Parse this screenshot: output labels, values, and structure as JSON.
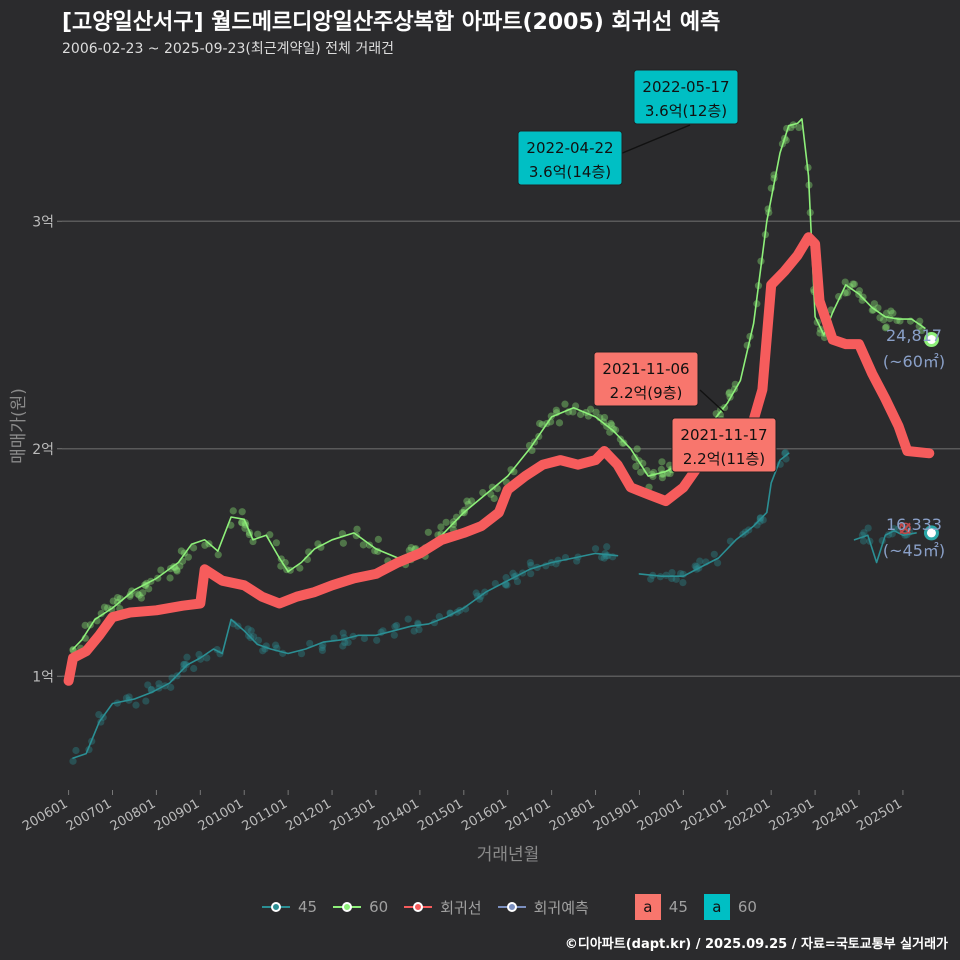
{
  "title": "[고양일산서구] 월드메르디앙일산주상복합 아파트(2005) 회귀선 예측",
  "subtitle": "2006-02-23 ~ 2025-09-23(최근계약일) 전체 거래건",
  "credit": "©디아파트(dapt.kr) / 2025.09.25 / 자료=국토교통부 실거래가",
  "legend": {
    "items": [
      {
        "label": "45",
        "color": "#2b8f94"
      },
      {
        "label": "60",
        "color": "#8ef07a"
      },
      {
        "label": "회귀선",
        "color": "#f65c5c"
      },
      {
        "label": "회귀예측",
        "color": "#7b8fbf"
      }
    ],
    "boxes": [
      {
        "label": "45",
        "glyph": "a",
        "color": "#f8766d"
      },
      {
        "label": "60",
        "glyph": "a",
        "color": "#00bfc4"
      }
    ]
  },
  "chart_data": {
    "type": "line",
    "title": "[고양일산서구] 월드메르디앙일산주상복합 아파트(2005) 회귀선 예측",
    "xlabel": "거래년월",
    "ylabel": "매매가(원)",
    "x_ticks": [
      "200601",
      "200701",
      "200801",
      "200901",
      "201001",
      "201101",
      "201201",
      "201301",
      "201401",
      "201501",
      "201601",
      "201701",
      "201801",
      "201901",
      "202001",
      "202101",
      "202201",
      "202301",
      "202401",
      "202501"
    ],
    "y_ticks": [
      {
        "value": 1,
        "label": "1억"
      },
      {
        "value": 2,
        "label": "2억"
      },
      {
        "value": 3,
        "label": "3억"
      }
    ],
    "xlim": [
      2005.85,
      2026.3
    ],
    "ylim": [
      0.5,
      3.7
    ],
    "series": [
      {
        "name": "60",
        "color": "#8ef07a",
        "points": [
          [
            2006.1,
            1.12
          ],
          [
            2006.3,
            1.16
          ],
          [
            2006.6,
            1.25
          ],
          [
            2007.0,
            1.3
          ],
          [
            2007.5,
            1.38
          ],
          [
            2008.0,
            1.43
          ],
          [
            2008.5,
            1.5
          ],
          [
            2008.8,
            1.58
          ],
          [
            2009.1,
            1.6
          ],
          [
            2009.4,
            1.55
          ],
          [
            2009.7,
            1.7
          ],
          [
            2010.0,
            1.69
          ],
          [
            2010.2,
            1.6
          ],
          [
            2010.5,
            1.62
          ],
          [
            2010.8,
            1.52
          ],
          [
            2011.0,
            1.46
          ],
          [
            2011.3,
            1.5
          ],
          [
            2011.6,
            1.56
          ],
          [
            2012.0,
            1.6
          ],
          [
            2012.5,
            1.63
          ],
          [
            2013.0,
            1.56
          ],
          [
            2013.5,
            1.52
          ],
          [
            2014.0,
            1.56
          ],
          [
            2014.5,
            1.62
          ],
          [
            2015.0,
            1.72
          ],
          [
            2015.5,
            1.8
          ],
          [
            2016.0,
            1.88
          ],
          [
            2016.5,
            2.0
          ],
          [
            2017.0,
            2.14
          ],
          [
            2017.5,
            2.18
          ],
          [
            2018.0,
            2.14
          ],
          [
            2018.4,
            2.08
          ],
          [
            2018.8,
            2.0
          ],
          [
            2019.2,
            1.88
          ],
          [
            2019.6,
            1.9
          ],
          [
            2020.0,
            1.94
          ],
          [
            2020.5,
            2.08
          ],
          [
            2021.0,
            2.2
          ],
          [
            2021.3,
            2.3
          ],
          [
            2021.6,
            2.55
          ],
          [
            2021.9,
            3.0
          ],
          [
            2022.2,
            3.3
          ],
          [
            2022.4,
            3.42
          ],
          [
            2022.6,
            3.43
          ],
          [
            2022.7,
            3.45
          ],
          [
            2022.85,
            3.2
          ],
          [
            2023.0,
            2.58
          ],
          [
            2023.2,
            2.5
          ],
          [
            2023.4,
            2.6
          ],
          [
            2023.7,
            2.72
          ],
          [
            2024.0,
            2.68
          ],
          [
            2024.3,
            2.62
          ],
          [
            2024.6,
            2.58
          ],
          [
            2024.9,
            2.57
          ],
          [
            2025.2,
            2.57
          ],
          [
            2025.5,
            2.53
          ]
        ]
      },
      {
        "name": "45",
        "color": "#2b8f94",
        "segments": [
          [
            [
              2006.1,
              0.64
            ],
            [
              2006.4,
              0.66
            ],
            [
              2006.7,
              0.8
            ],
            [
              2007.0,
              0.88
            ],
            [
              2007.5,
              0.9
            ],
            [
              2007.9,
              0.93
            ],
            [
              2008.3,
              0.97
            ],
            [
              2008.7,
              1.05
            ],
            [
              2009.0,
              1.08
            ],
            [
              2009.3,
              1.12
            ],
            [
              2009.5,
              1.1
            ],
            [
              2009.7,
              1.25
            ],
            [
              2010.0,
              1.2
            ],
            [
              2010.3,
              1.14
            ],
            [
              2010.6,
              1.12
            ],
            [
              2011.0,
              1.1
            ],
            [
              2011.4,
              1.12
            ],
            [
              2011.8,
              1.15
            ],
            [
              2012.2,
              1.16
            ],
            [
              2012.6,
              1.18
            ],
            [
              2013.0,
              1.18
            ],
            [
              2013.4,
              1.2
            ],
            [
              2013.8,
              1.22
            ],
            [
              2014.2,
              1.23
            ],
            [
              2014.6,
              1.26
            ],
            [
              2015.0,
              1.3
            ],
            [
              2015.5,
              1.37
            ],
            [
              2016.0,
              1.42
            ],
            [
              2016.5,
              1.47
            ],
            [
              2017.0,
              1.5
            ],
            [
              2017.5,
              1.52
            ],
            [
              2018.0,
              1.54
            ],
            [
              2018.5,
              1.53
            ]
          ],
          [
            [
              2019.0,
              1.45
            ],
            [
              2019.5,
              1.44
            ],
            [
              2020.0,
              1.44
            ],
            [
              2020.4,
              1.48
            ],
            [
              2020.8,
              1.52
            ],
            [
              2021.2,
              1.6
            ],
            [
              2021.6,
              1.66
            ],
            [
              2021.9,
              1.72
            ],
            [
              2022.0,
              1.85
            ],
            [
              2022.2,
              1.95
            ],
            [
              2022.4,
              1.98
            ]
          ],
          [
            [
              2023.9,
              1.6
            ],
            [
              2024.2,
              1.62
            ],
            [
              2024.4,
              1.5
            ],
            [
              2024.6,
              1.62
            ],
            [
              2024.8,
              1.64
            ],
            [
              2025.0,
              1.62
            ],
            [
              2025.3,
              1.63
            ]
          ]
        ]
      },
      {
        "name": "회귀선",
        "color": "#f65c5c",
        "points": [
          [
            2006.0,
            0.98
          ],
          [
            2006.1,
            1.08
          ],
          [
            2006.4,
            1.11
          ],
          [
            2006.7,
            1.18
          ],
          [
            2007.0,
            1.26
          ],
          [
            2007.4,
            1.28
          ],
          [
            2008.0,
            1.29
          ],
          [
            2008.6,
            1.31
          ],
          [
            2009.0,
            1.32
          ],
          [
            2009.1,
            1.47
          ],
          [
            2009.5,
            1.42
          ],
          [
            2010.0,
            1.4
          ],
          [
            2010.4,
            1.35
          ],
          [
            2010.8,
            1.32
          ],
          [
            2011.2,
            1.35
          ],
          [
            2011.6,
            1.37
          ],
          [
            2012.0,
            1.4
          ],
          [
            2012.5,
            1.43
          ],
          [
            2013.0,
            1.45
          ],
          [
            2013.5,
            1.5
          ],
          [
            2014.0,
            1.54
          ],
          [
            2014.5,
            1.6
          ],
          [
            2015.0,
            1.63
          ],
          [
            2015.4,
            1.66
          ],
          [
            2015.8,
            1.72
          ],
          [
            2016.0,
            1.82
          ],
          [
            2016.4,
            1.88
          ],
          [
            2016.8,
            1.93
          ],
          [
            2017.2,
            1.95
          ],
          [
            2017.6,
            1.93
          ],
          [
            2018.0,
            1.95
          ],
          [
            2018.2,
            1.99
          ],
          [
            2018.5,
            1.93
          ],
          [
            2018.8,
            1.83
          ],
          [
            2019.2,
            1.8
          ],
          [
            2019.6,
            1.77
          ],
          [
            2020.0,
            1.83
          ],
          [
            2020.4,
            1.94
          ],
          [
            2020.8,
            1.98
          ],
          [
            2021.2,
            2.0
          ],
          [
            2021.5,
            2.06
          ],
          [
            2021.8,
            2.26
          ],
          [
            2022.0,
            2.72
          ],
          [
            2022.3,
            2.78
          ],
          [
            2022.6,
            2.85
          ],
          [
            2022.85,
            2.93
          ],
          [
            2023.0,
            2.9
          ],
          [
            2023.1,
            2.65
          ],
          [
            2023.4,
            2.48
          ],
          [
            2023.7,
            2.46
          ],
          [
            2024.0,
            2.46
          ],
          [
            2024.3,
            2.33
          ],
          [
            2024.6,
            2.22
          ],
          [
            2024.9,
            2.1
          ],
          [
            2025.1,
            1.99
          ],
          [
            2025.6,
            1.98
          ]
        ]
      }
    ],
    "end_points": [
      {
        "series": "60",
        "x": 2025.65,
        "y": 2.48,
        "color": "#8ef07a"
      },
      {
        "series": "45",
        "x": 2025.65,
        "y": 1.63,
        "color": "#2aa7a7"
      }
    ],
    "prediction_marker": {
      "x": 2025.05,
      "y": 1.65
    },
    "annotations": [
      {
        "date": "2022-05-17",
        "price": "3.6억(12층)",
        "color": "#00bfc4"
      },
      {
        "date": "2022-04-22",
        "price": "3.6억(14층)",
        "color": "#00bfc4"
      },
      {
        "date": "2021-11-06",
        "price": "2.2억(9층)",
        "color": "#f8766d"
      },
      {
        "date": "2021-11-17",
        "price": "2.2억(11층)",
        "color": "#f8766d"
      }
    ],
    "end_labels": [
      {
        "value": "24,817",
        "area": "(~60㎡)"
      },
      {
        "value": "16,333",
        "area": "(~45㎡)"
      }
    ]
  }
}
